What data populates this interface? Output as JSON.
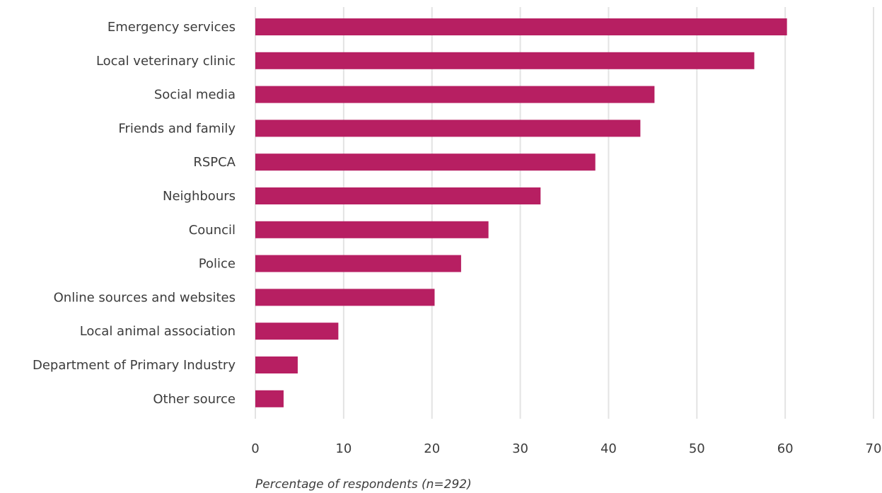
{
  "chart_data": {
    "type": "bar",
    "orientation": "horizontal",
    "categories": [
      "Emergency services",
      "Local veterinary clinic",
      "Social media",
      "Friends and family",
      "RSPCA",
      "Neighbours",
      "Council",
      "Police",
      "Online sources and websites",
      "Local animal association",
      "Department of Primary Industry",
      "Other source"
    ],
    "values": [
      60.2,
      56.5,
      45.2,
      43.6,
      38.5,
      32.3,
      26.4,
      23.3,
      20.3,
      9.4,
      4.8,
      3.2
    ],
    "title": "",
    "xlabel": "Percentage of respondents (n=292)",
    "ylabel": "",
    "xlim": [
      0,
      70
    ],
    "xticks": [
      "0",
      "10",
      "20",
      "30",
      "40",
      "50",
      "60",
      "70"
    ],
    "grid": true,
    "legend": "none",
    "colors": {
      "bar": "#b71f62",
      "grid": "#e3e3e3",
      "text": "#3c3c3c"
    }
  }
}
